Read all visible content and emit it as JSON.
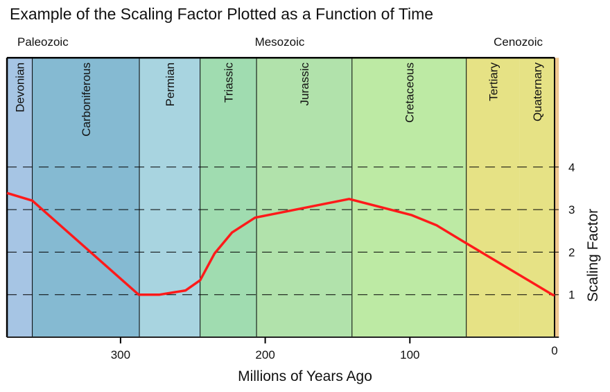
{
  "chart_data": {
    "type": "line",
    "title": "Example of the Scaling Factor Plotted as a Function of Time",
    "xlabel": "Millions of Years Ago",
    "ylabel": "Scaling Factor",
    "x_reversed": true,
    "xlim": [
      378.5,
      -3
    ],
    "ylim": [
      0,
      6.57
    ],
    "xticks": [
      300,
      200,
      100,
      0
    ],
    "yticks": [
      1,
      2,
      3,
      4
    ],
    "grid": "horizontal dashed at y ticks",
    "eras": [
      {
        "label": "Paleozoic",
        "at": 361
      },
      {
        "label": "Mesozoic",
        "at": 190
      },
      {
        "label": "Cenozoic",
        "at": 30
      }
    ],
    "periods": [
      {
        "label": "Devonian",
        "start": 378.5,
        "end": 361,
        "color": "#a6c5e4"
      },
      {
        "label": "Carboniferous",
        "start": 361,
        "end": 287,
        "color": "#85bad2"
      },
      {
        "label": "Permian",
        "start": 287,
        "end": 245,
        "color": "#a8d4e0"
      },
      {
        "label": "Triassic",
        "start": 245,
        "end": 206,
        "color": "#a0dcb0"
      },
      {
        "label": "Jurassic",
        "start": 206,
        "end": 140,
        "color": "#b1e2ab"
      },
      {
        "label": "Cretaceous",
        "start": 140,
        "end": 61,
        "color": "#bdeaa4"
      },
      {
        "label": "Tertiary",
        "start": 61,
        "end": 24,
        "color": "#e6e285"
      },
      {
        "label": "Quaternary",
        "start": 24,
        "end": 0,
        "color": "#e6e285"
      }
    ],
    "present_strip_color": "#f0c890",
    "series": [
      {
        "color": "#ff1a1a",
        "x": [
          378.5,
          361,
          287.5,
          273,
          255,
          245,
          235,
          223,
          207,
          142,
          98.7,
          81.5,
          63,
          1.5,
          0
        ],
        "y": [
          3.39,
          3.21,
          1.0,
          1.0,
          1.1,
          1.34,
          1.97,
          2.46,
          2.81,
          3.25,
          2.87,
          2.63,
          2.25,
          1.0,
          0.98
        ]
      }
    ]
  }
}
